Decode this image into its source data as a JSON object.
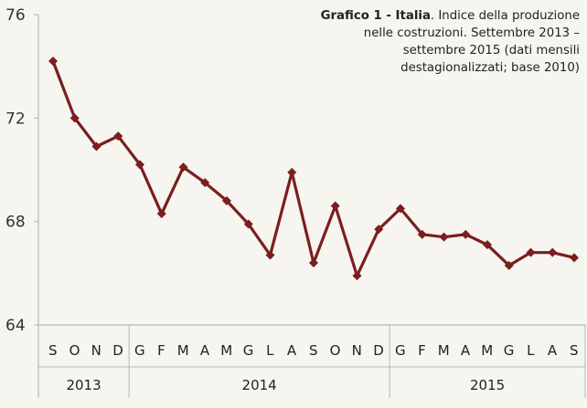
{
  "chart_data": {
    "type": "line",
    "title_bold": "Grafico 1 - Italia",
    "title_rest": ". Indice della produzione nelle costruzioni. Settembre 2013 – settembre 2015 (dati mensili destagionalizzati; base 2010)",
    "yticks": [
      "64",
      "68",
      "72",
      "76"
    ],
    "ylim": [
      64,
      76
    ],
    "months": [
      "S",
      "O",
      "N",
      "D",
      "G",
      "F",
      "M",
      "A",
      "M",
      "G",
      "L",
      "A",
      "S",
      "O",
      "N",
      "D",
      "G",
      "F",
      "M",
      "A",
      "M",
      "G",
      "L",
      "A",
      "S"
    ],
    "years": [
      {
        "label": "2013",
        "start": 0,
        "end": 4
      },
      {
        "label": "2014",
        "start": 4,
        "end": 16
      },
      {
        "label": "2015",
        "start": 16,
        "end": 25
      }
    ],
    "series": [
      {
        "values": [
          74.2,
          72.0,
          70.9,
          71.3,
          70.2,
          68.3,
          70.1,
          69.5,
          68.8,
          67.9,
          66.7,
          69.9,
          66.4,
          68.6,
          65.9,
          67.7,
          68.5,
          67.5,
          67.4,
          67.5,
          67.1,
          66.3,
          66.8,
          66.8,
          66.6
        ]
      }
    ],
    "grid": false,
    "line_color": "#7a1e1e"
  }
}
